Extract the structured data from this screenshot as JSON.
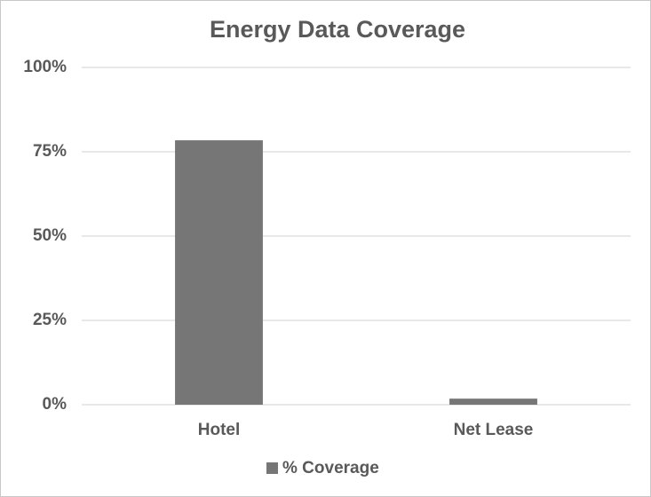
{
  "chart_data": {
    "type": "bar",
    "title": "Energy Data Coverage",
    "categories": [
      "Hotel",
      "Net Lease"
    ],
    "series": [
      {
        "name": "% Coverage",
        "color": "#767676",
        "values": [
          78.4,
          1.8
        ]
      }
    ],
    "ylim": [
      0,
      100
    ],
    "yticks": [
      {
        "value": 0,
        "label": "0%"
      },
      {
        "value": 25,
        "label": "25%"
      },
      {
        "value": 50,
        "label": "50%"
      },
      {
        "value": 75,
        "label": "75%"
      },
      {
        "value": 100,
        "label": "100%"
      }
    ],
    "grid": true,
    "legend": "bottom"
  }
}
